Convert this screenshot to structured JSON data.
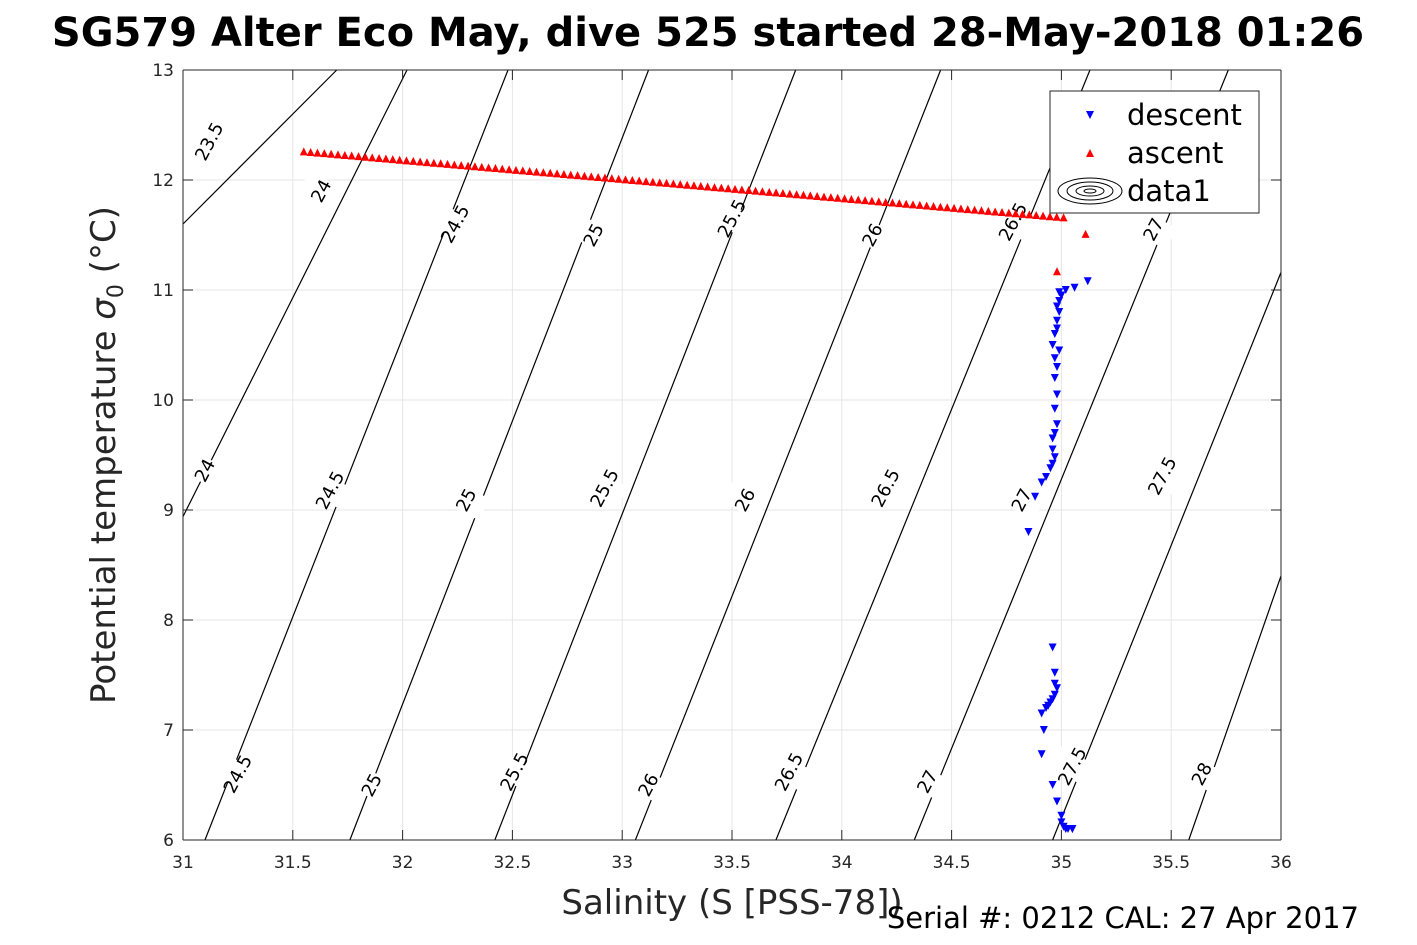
{
  "title": "SG579 Alter Eco May, dive 525 started 28-May-2018 01:26",
  "footer": "Serial #: 0212  CAL: 27 Apr 2017",
  "colors": {
    "descent": "#0000ff",
    "ascent": "#ff0000",
    "contour": "#000000",
    "grid": "#e6e6e6"
  },
  "chart_data": {
    "type": "scatter",
    "title": "SG579 Alter Eco May, dive 525 started 28-May-2018 01:26",
    "xlabel": "Salinity (S [PSS-78])",
    "ylabel_main": "Potential temperature ",
    "ylabel_sym": "σ",
    "ylabel_sub": "0",
    "ylabel_unit": " (°C)",
    "xlim": [
      31,
      36
    ],
    "ylim": [
      6,
      13
    ],
    "xticks": [
      "31",
      "31.5",
      "32",
      "32.5",
      "33",
      "33.5",
      "34",
      "34.5",
      "35",
      "35.5",
      "36"
    ],
    "yticks": [
      "6",
      "7",
      "8",
      "9",
      "10",
      "11",
      "12",
      "13"
    ],
    "grid": true,
    "legend": {
      "placement": "top-right",
      "entries": [
        "descent",
        "ascent",
        "data1"
      ]
    },
    "series": [
      {
        "name": "descent",
        "marker": "triangle-down",
        "color": "#0000ff",
        "points": [
          [
            34.85,
            8.8
          ],
          [
            34.88,
            9.12
          ],
          [
            34.91,
            9.25
          ],
          [
            34.93,
            9.3
          ],
          [
            34.95,
            9.38
          ],
          [
            34.96,
            9.42
          ],
          [
            34.97,
            9.48
          ],
          [
            34.96,
            9.55
          ],
          [
            34.96,
            9.65
          ],
          [
            34.97,
            9.7
          ],
          [
            34.98,
            9.78
          ],
          [
            34.97,
            9.92
          ],
          [
            34.98,
            10.05
          ],
          [
            34.97,
            10.2
          ],
          [
            34.98,
            10.3
          ],
          [
            34.97,
            10.38
          ],
          [
            34.99,
            10.45
          ],
          [
            34.96,
            10.5
          ],
          [
            34.97,
            10.6
          ],
          [
            34.98,
            10.65
          ],
          [
            34.98,
            10.72
          ],
          [
            34.99,
            10.8
          ],
          [
            34.98,
            10.85
          ],
          [
            34.99,
            10.9
          ],
          [
            35.0,
            10.95
          ],
          [
            34.99,
            10.98
          ],
          [
            35.02,
            11.0
          ],
          [
            35.06,
            11.02
          ],
          [
            35.12,
            11.08
          ],
          [
            34.96,
            7.75
          ],
          [
            34.97,
            7.52
          ],
          [
            34.97,
            7.42
          ],
          [
            34.98,
            7.38
          ],
          [
            34.97,
            7.32
          ],
          [
            34.96,
            7.28
          ],
          [
            34.95,
            7.25
          ],
          [
            34.94,
            7.22
          ],
          [
            34.93,
            7.2
          ],
          [
            34.91,
            7.15
          ],
          [
            34.92,
            7.0
          ],
          [
            34.91,
            6.78
          ],
          [
            34.96,
            6.5
          ],
          [
            34.98,
            6.35
          ],
          [
            35.0,
            6.22
          ],
          [
            35.0,
            6.16
          ],
          [
            35.01,
            6.12
          ],
          [
            35.02,
            6.1
          ],
          [
            35.03,
            6.1
          ],
          [
            35.05,
            6.1
          ],
          [
            35.05,
            6.1
          ]
        ]
      },
      {
        "name": "ascent",
        "marker": "triangle-up",
        "color": "#ff0000",
        "line": {
          "from": [
            31.55,
            12.26
          ],
          "to": [
            35.01,
            11.66
          ],
          "count": 112
        },
        "points": [
          [
            34.98,
            11.17
          ],
          [
            35.11,
            11.51
          ]
        ]
      }
    ],
    "contours": [
      {
        "sigma": "23.5",
        "x": [
          31.0,
          31.7
        ],
        "y": [
          11.6,
          13.0
        ]
      },
      {
        "sigma": "24",
        "x": [
          31.0,
          32.02
        ],
        "y": [
          8.94,
          13.0
        ]
      },
      {
        "sigma": "24.5",
        "x": [
          31.1,
          32.48
        ],
        "y": [
          6.0,
          13.0
        ]
      },
      {
        "sigma": "25",
        "x": [
          31.76,
          33.12
        ],
        "y": [
          6.0,
          13.0
        ]
      },
      {
        "sigma": "25.5",
        "x": [
          32.42,
          33.79
        ],
        "y": [
          6.0,
          13.0
        ]
      },
      {
        "sigma": "26",
        "x": [
          33.06,
          34.45
        ],
        "y": [
          6.0,
          13.0
        ]
      },
      {
        "sigma": "26.5",
        "x": [
          33.7,
          35.13
        ],
        "y": [
          6.0,
          13.0
        ]
      },
      {
        "sigma": "27",
        "x": [
          34.33,
          35.76
        ],
        "y": [
          6.0,
          13.0
        ]
      },
      {
        "sigma": "27.5",
        "x": [
          34.96,
          36.0
        ],
        "y": [
          6.0,
          11.16
        ]
      },
      {
        "sigma": "28",
        "x": [
          35.58,
          36.0
        ],
        "y": [
          6.0,
          8.4
        ]
      }
    ],
    "contour_labels": [
      {
        "text": "23.5",
        "x": 31.12,
        "y": 12.35
      },
      {
        "text": "24",
        "x": 31.63,
        "y": 11.9
      },
      {
        "text": "24.5",
        "x": 32.24,
        "y": 11.6
      },
      {
        "text": "25",
        "x": 32.87,
        "y": 11.5
      },
      {
        "text": "25.5",
        "x": 33.5,
        "y": 11.65
      },
      {
        "text": "26",
        "x": 34.14,
        "y": 11.5
      },
      {
        "text": "26.5",
        "x": 34.78,
        "y": 11.62
      },
      {
        "text": "27",
        "x": 35.42,
        "y": 11.55
      },
      {
        "text": "24",
        "x": 31.1,
        "y": 9.36
      },
      {
        "text": "24.5",
        "x": 31.67,
        "y": 9.18
      },
      {
        "text": "25",
        "x": 32.29,
        "y": 9.09
      },
      {
        "text": "25.5",
        "x": 32.92,
        "y": 9.2
      },
      {
        "text": "26",
        "x": 33.56,
        "y": 9.09
      },
      {
        "text": "26.5",
        "x": 34.2,
        "y": 9.2
      },
      {
        "text": "27",
        "x": 34.82,
        "y": 9.09
      },
      {
        "text": "27.5",
        "x": 35.46,
        "y": 9.31
      },
      {
        "text": "24.5",
        "x": 31.25,
        "y": 6.6
      },
      {
        "text": "25",
        "x": 31.86,
        "y": 6.5
      },
      {
        "text": "25.5",
        "x": 32.51,
        "y": 6.62
      },
      {
        "text": "26",
        "x": 33.12,
        "y": 6.5
      },
      {
        "text": "26.5",
        "x": 33.76,
        "y": 6.62
      },
      {
        "text": "27",
        "x": 34.39,
        "y": 6.53
      },
      {
        "text": "27.5",
        "x": 35.05,
        "y": 6.67
      },
      {
        "text": "28",
        "x": 35.64,
        "y": 6.6
      }
    ]
  }
}
